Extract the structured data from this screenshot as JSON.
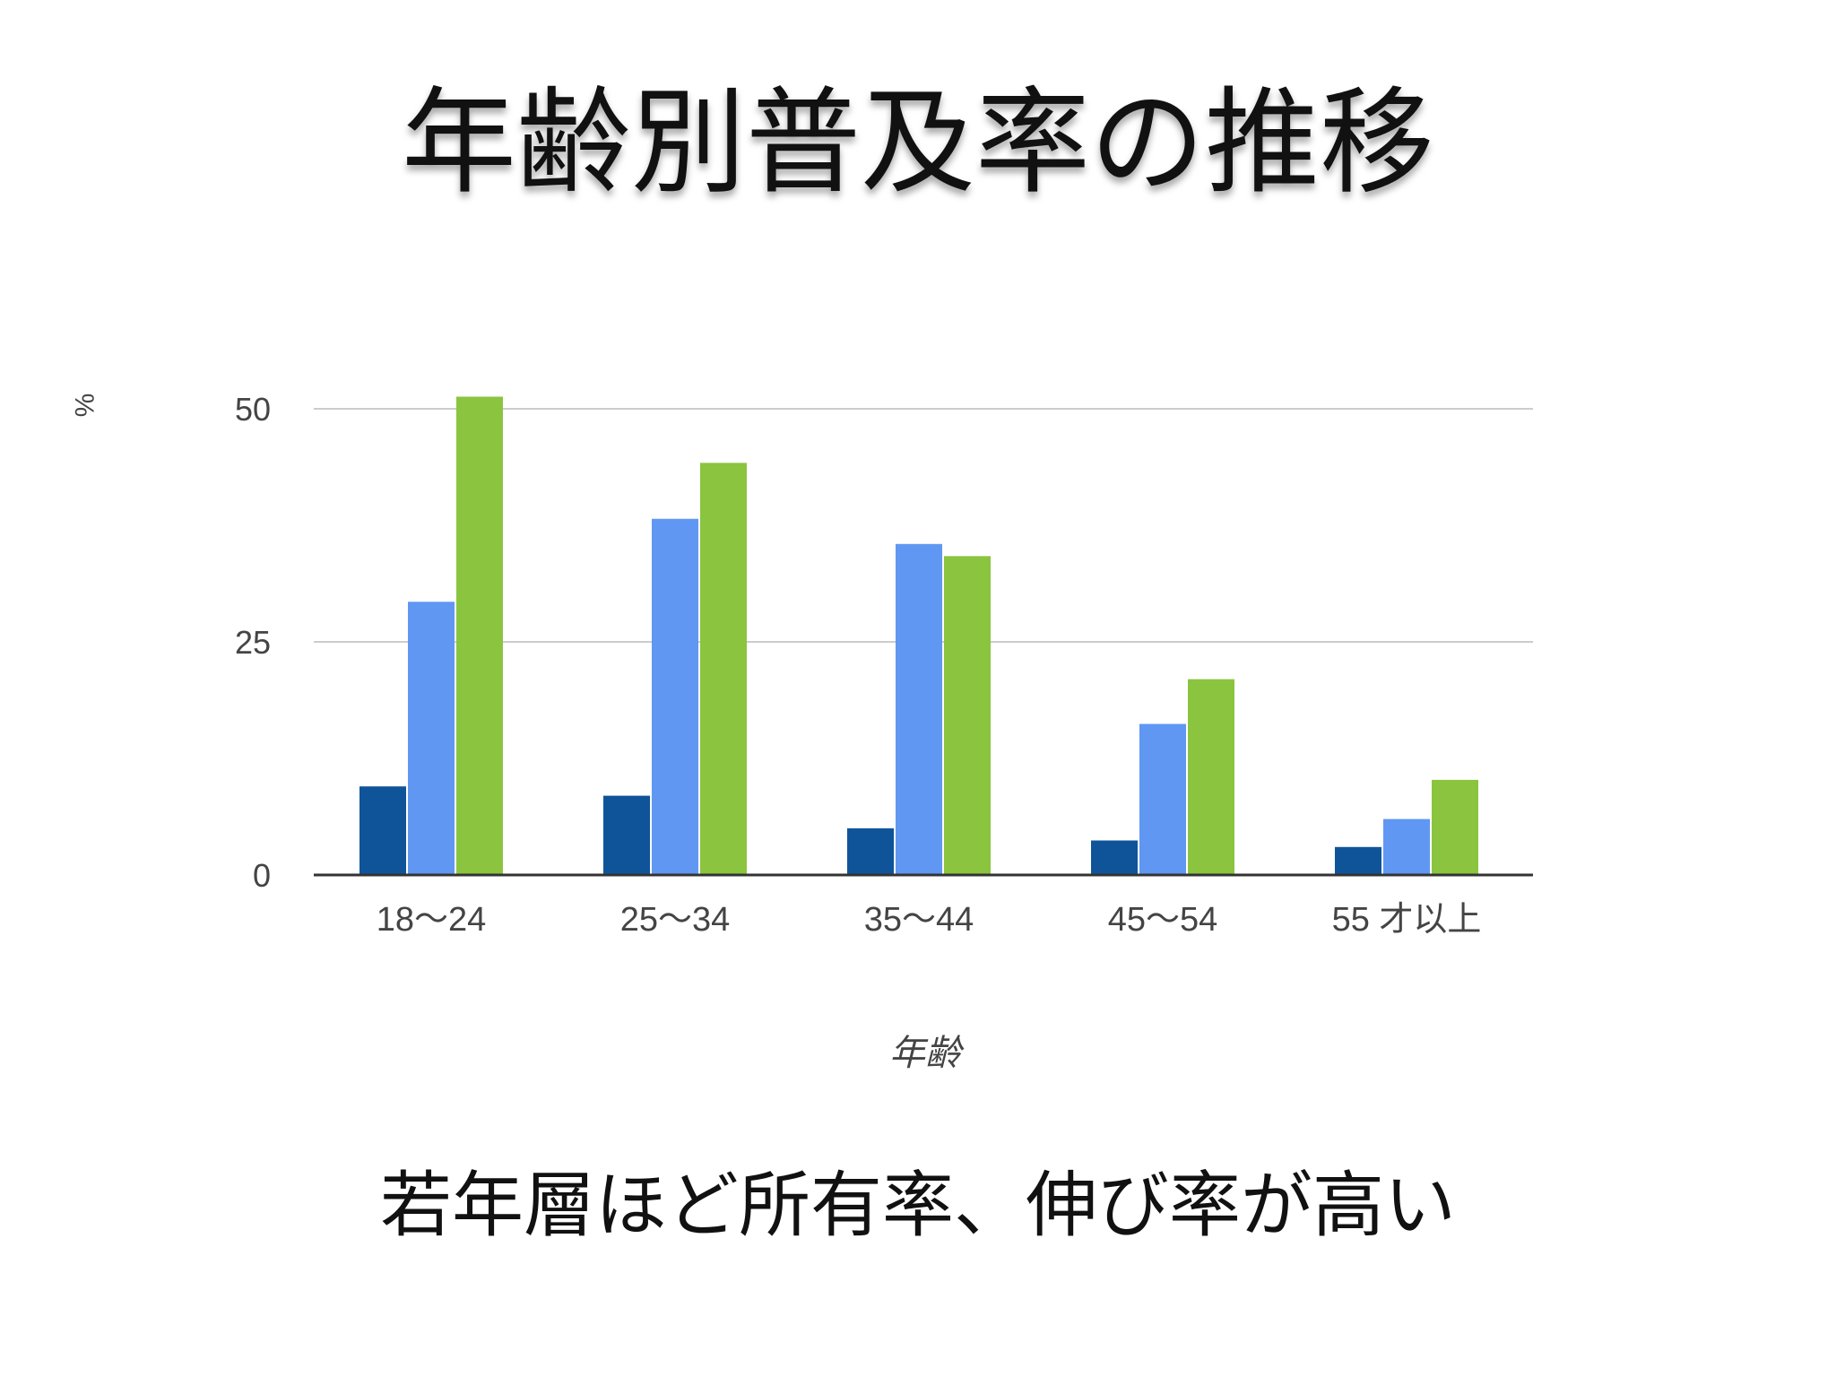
{
  "slide": {
    "title": "年齢別普及率の推移",
    "caption": "若年層ほど所有率、伸び率が高い"
  },
  "chart_data": {
    "type": "bar",
    "title": "",
    "xlabel": "年齢",
    "ylabel": "%",
    "ylim": [
      0,
      50
    ],
    "yticks": [
      0,
      25,
      50
    ],
    "grid": true,
    "legend": "none",
    "categories": [
      "18〜24",
      "25〜34",
      "35〜44",
      "45〜54",
      "55 才以上"
    ],
    "series": [
      {
        "values": [
          9.5,
          8.5,
          5,
          3.7,
          3
        ],
        "color": "#0f5499"
      },
      {
        "values": [
          29.3,
          38.2,
          35.5,
          16.2,
          6
        ],
        "color": "#6097f2"
      },
      {
        "values": [
          51.3,
          44.2,
          34.2,
          21,
          10.2
        ],
        "color": "#8bc43f"
      }
    ]
  }
}
